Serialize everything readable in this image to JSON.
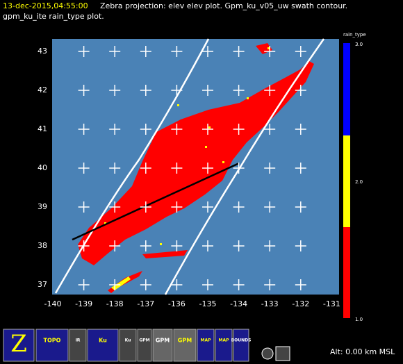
{
  "header": {
    "time": "13-dec-2015,04:55:00",
    "line1": "Zebra projection: elev elev  plot.  Gpm_ku_v05_uw swath contour.",
    "line2": "gpm_ku_ite rain_type  plot."
  },
  "axes": {
    "y_labels": [
      "43",
      "42",
      "41",
      "40",
      "39",
      "38",
      "37"
    ],
    "x_labels": [
      "-140",
      "-139",
      "-138",
      "-137",
      "-136",
      "-135",
      "-134",
      "-133",
      "-132",
      "-131"
    ]
  },
  "colorbar": {
    "title": "rain_type",
    "labels": [
      "3.0",
      "2.0",
      "1.0"
    ]
  },
  "toolbar": {
    "buttons": [
      "TOPO",
      "IR",
      "Ku",
      "Ku",
      "GPM",
      "GPM",
      "GPM",
      "MAP",
      "MAP",
      "BOUNDS"
    ]
  },
  "status": {
    "altitude": "Alt: 0.00 km MSL"
  }
}
